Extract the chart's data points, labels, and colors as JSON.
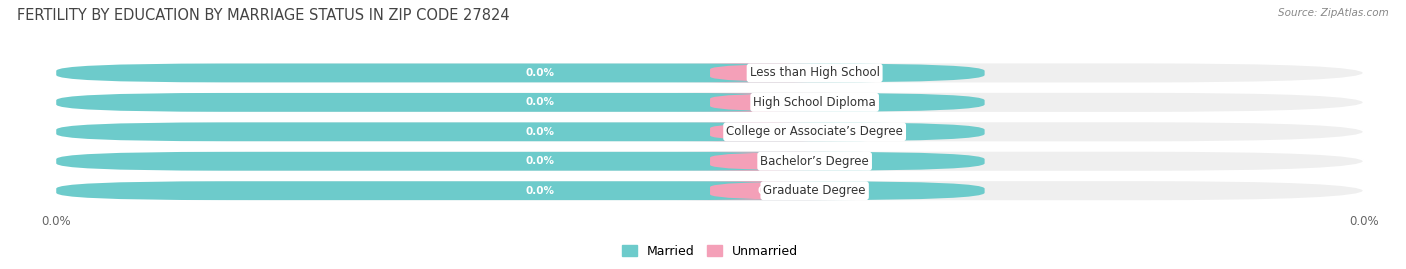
{
  "title": "FERTILITY BY EDUCATION BY MARRIAGE STATUS IN ZIP CODE 27824",
  "source": "Source: ZipAtlas.com",
  "categories": [
    "Less than High School",
    "High School Diploma",
    "College or Associate’s Degree",
    "Bachelor’s Degree",
    "Graduate Degree"
  ],
  "married_values": [
    0.0,
    0.0,
    0.0,
    0.0,
    0.0
  ],
  "unmarried_values": [
    0.0,
    0.0,
    0.0,
    0.0,
    0.0
  ],
  "married_color": "#6dcbcb",
  "unmarried_color": "#f4a0b8",
  "married_label": "Married",
  "unmarried_label": "Unmarried",
  "row_bg_color": "#efefef",
  "figsize": [
    14.06,
    2.69
  ],
  "dpi": 100,
  "title_fontsize": 10.5,
  "bar_height": 0.72,
  "value_fontsize": 7.5,
  "category_fontsize": 8.5,
  "axis_label_fontsize": 8.5,
  "legend_fontsize": 9
}
